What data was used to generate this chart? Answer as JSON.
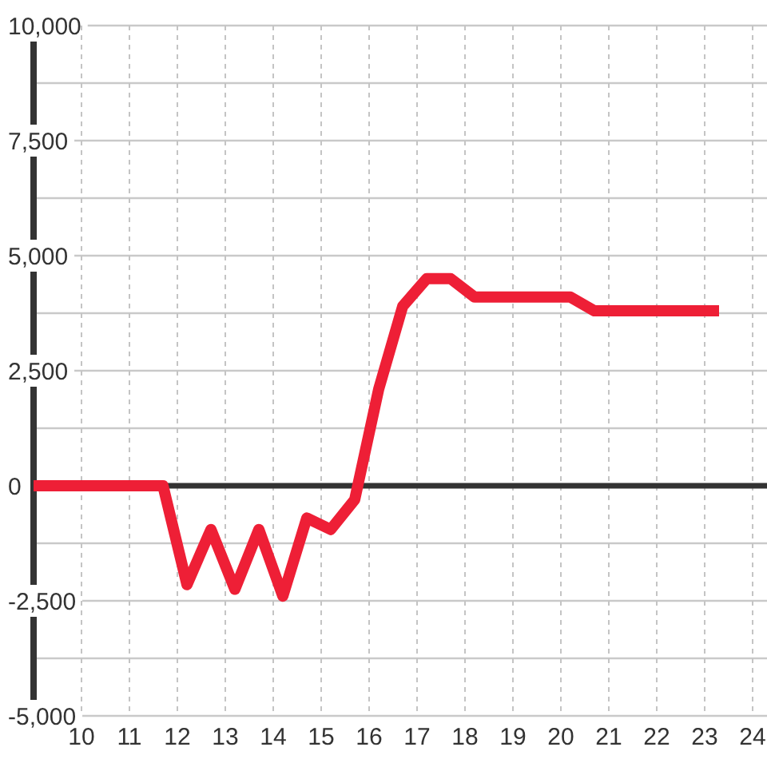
{
  "chart_data": {
    "type": "line",
    "x": [
      9,
      11.7,
      12.2,
      12.7,
      13.2,
      13.7,
      14.2,
      14.7,
      15.2,
      15.7,
      16.2,
      16.7,
      17.2,
      17.7,
      18.2,
      20.2,
      20.7,
      23.3
    ],
    "series": [
      {
        "color": "#ee1f36",
        "values": [
          0,
          0,
          -2150,
          -950,
          -2250,
          -950,
          -2400,
          -700,
          -950,
          -300,
          2100,
          3900,
          4500,
          4500,
          4100,
          4100,
          3800,
          3800
        ]
      }
    ],
    "xlim": [
      9,
      24.3
    ],
    "xticks": [
      10,
      11,
      12,
      13,
      14,
      15,
      16,
      17,
      18,
      19,
      20,
      21,
      22,
      23,
      24
    ],
    "ylim": [
      -5000,
      10000
    ],
    "yticks": [
      {
        "value": -5000,
        "label": "-5,000"
      },
      {
        "value": -3750,
        "label": null
      },
      {
        "value": -2500,
        "label": "-2,500"
      },
      {
        "value": -1250,
        "label": null
      },
      0,
      {
        "value": 1250,
        "label": null
      },
      {
        "value": 2500,
        "label": "2,500"
      },
      {
        "value": 3750,
        "label": null
      },
      {
        "value": 5000,
        "label": "5,000"
      },
      {
        "value": 6250,
        "label": null
      },
      {
        "value": 7500,
        "label": "7,500"
      },
      {
        "value": 8750,
        "label": null
      },
      {
        "value": 10000,
        "label": "10,000"
      }
    ],
    "grid": true,
    "line_style": "solid",
    "ref_lines": [
      {
        "axis": "y",
        "value": 0,
        "color": "#333333"
      }
    ]
  }
}
